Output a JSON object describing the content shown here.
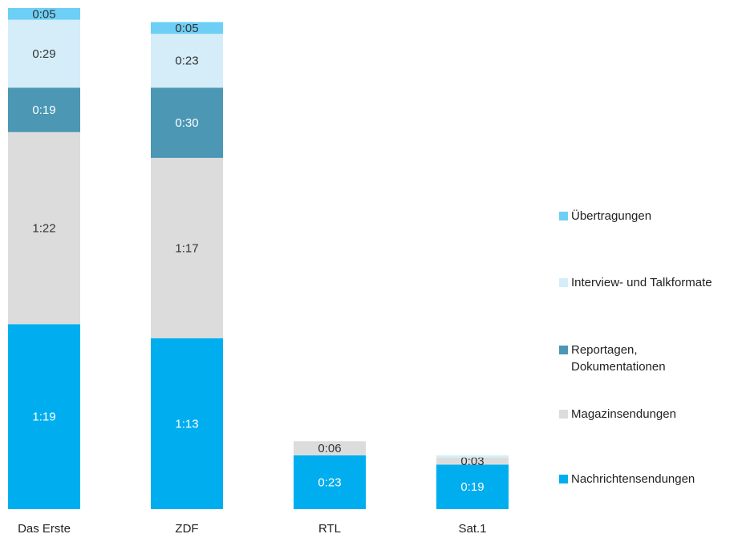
{
  "chart_data": {
    "type": "stacked_bar",
    "categories": [
      "Das Erste",
      "ZDF",
      "RTL",
      "Sat.1"
    ],
    "series": [
      {
        "name": "Nachrichtensendungen",
        "color": "#00aeef",
        "values": [
          79,
          73,
          23,
          19
        ],
        "value_labels": [
          "1:19",
          "1:13",
          "0:23",
          "0:19"
        ]
      },
      {
        "name": "Magazinsendungen",
        "color": "#dcdcdd",
        "values": [
          82,
          77,
          6,
          3
        ],
        "value_labels": [
          "1:22",
          "1:17",
          "0:06",
          "0:03"
        ]
      },
      {
        "name": "Reportagen,\nDokumentationen",
        "color": "#4b97b4",
        "values": [
          19,
          30,
          0,
          0
        ],
        "value_labels": [
          "0:19",
          "0:30",
          null,
          null
        ]
      },
      {
        "name": "Interview- und Talkformate",
        "color": "#d4edf9",
        "values": [
          29,
          23,
          0,
          1
        ],
        "value_labels": [
          "0:29",
          "0:23",
          null,
          null
        ]
      },
      {
        "name": "Übertragungen",
        "color": "#6dcff6",
        "values": [
          5,
          5,
          0,
          0
        ],
        "value_labels": [
          "0:05",
          "0:05",
          null,
          null
        ]
      }
    ],
    "ylim": [
      0,
      214
    ]
  }
}
